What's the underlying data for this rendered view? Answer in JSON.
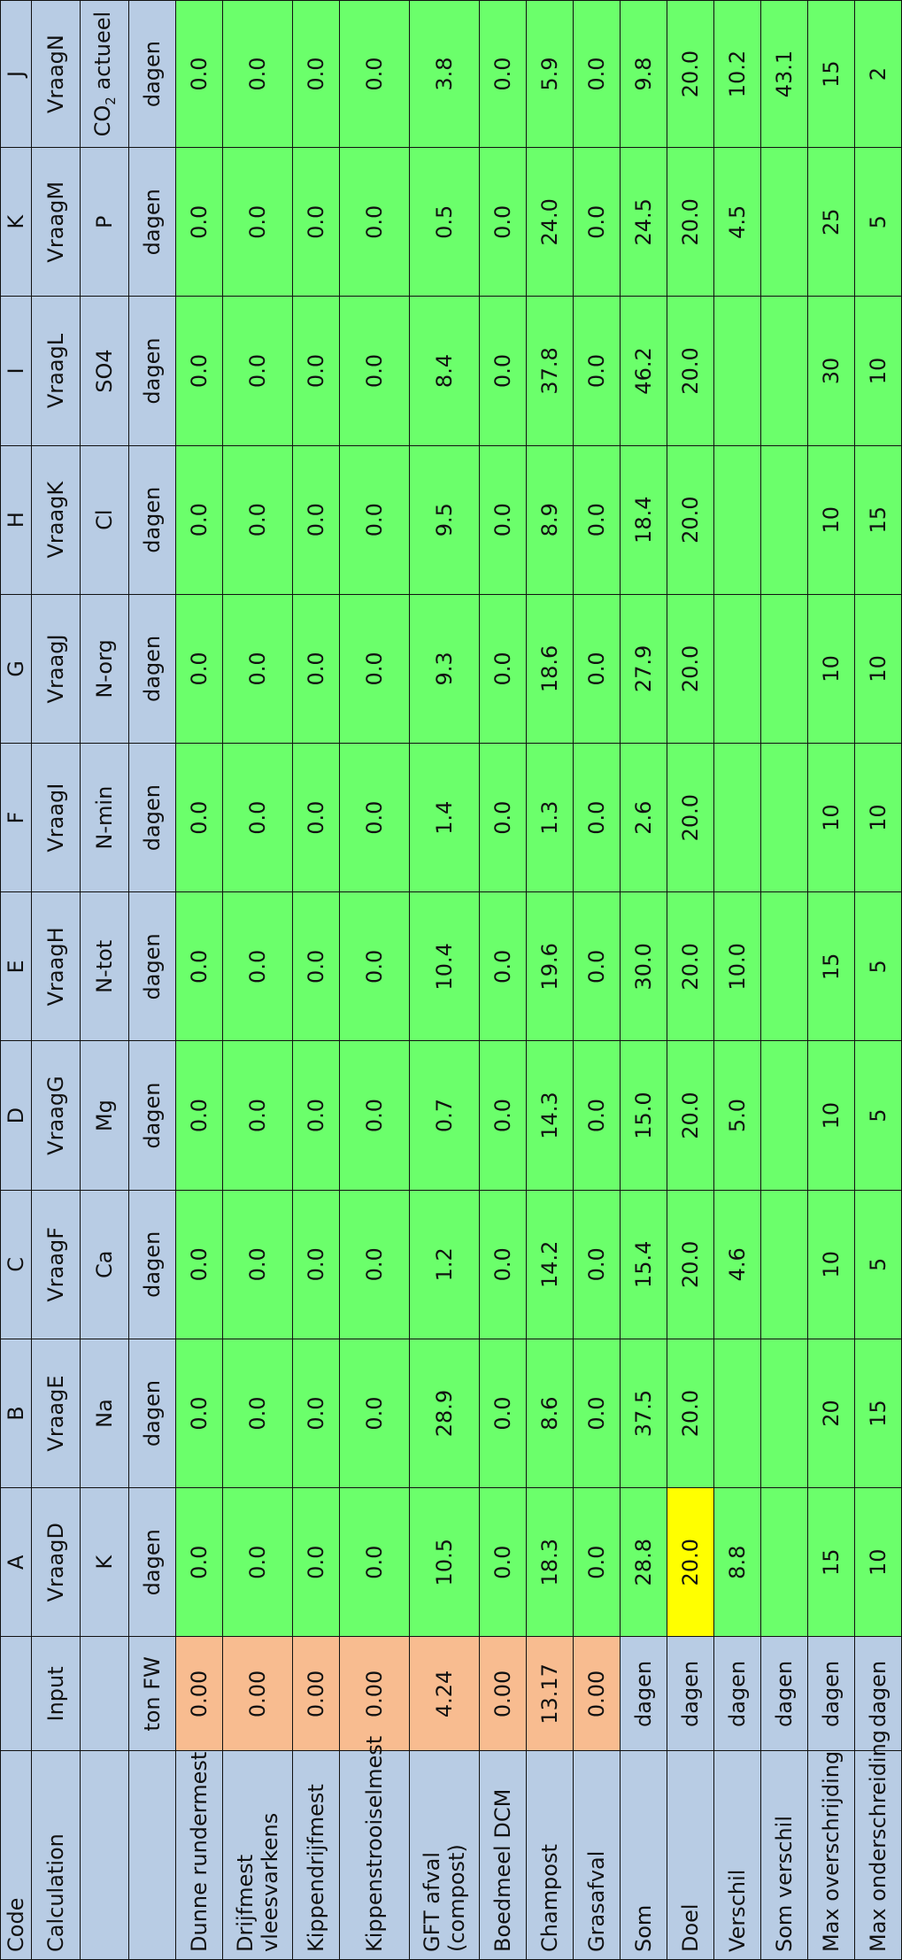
{
  "colors": {
    "header": "#b8cce4",
    "input": "#f8bc90",
    "value": "#6bff6b",
    "highlight": "#ffff00",
    "border": "#111111"
  },
  "header": {
    "code_label": "Code",
    "calc_label": "Calculation",
    "input_label": "Input",
    "input_unit": "ton FW",
    "columns": [
      {
        "code": "A",
        "vraag": "VraagD",
        "element": "K",
        "unit": "dagen"
      },
      {
        "code": "B",
        "vraag": "VraagE",
        "element": "Na",
        "unit": "dagen"
      },
      {
        "code": "C",
        "vraag": "VraagF",
        "element": "Ca",
        "unit": "dagen"
      },
      {
        "code": "D",
        "vraag": "VraagG",
        "element": "Mg",
        "unit": "dagen"
      },
      {
        "code": "E",
        "vraag": "VraagH",
        "element": "N-tot",
        "unit": "dagen"
      },
      {
        "code": "F",
        "vraag": "VraagI",
        "element": "N-min",
        "unit": "dagen"
      },
      {
        "code": "G",
        "vraag": "VraagJ",
        "element": "N-org",
        "unit": "dagen"
      },
      {
        "code": "H",
        "vraag": "VraagK",
        "element": "Cl",
        "unit": "dagen"
      },
      {
        "code": "I",
        "vraag": "VraagL",
        "element": "SO4",
        "unit": "dagen"
      },
      {
        "code": "K",
        "vraag": "VraagM",
        "element": "P",
        "unit": "dagen"
      },
      {
        "code": "J",
        "vraag": "VraagN",
        "element": "CO",
        "element_sub": "2",
        "element_suffix": " actueel",
        "unit": "dagen"
      }
    ]
  },
  "rows": [
    {
      "label": "Dunne rundermest",
      "input": "0.00",
      "values": [
        "0.0",
        "0.0",
        "0.0",
        "0.0",
        "0.0",
        "0.0",
        "0.0",
        "0.0",
        "0.0",
        "0.0",
        "0.0"
      ]
    },
    {
      "label": "Drijfmest vleesvarkens",
      "input": "0.00",
      "values": [
        "0.0",
        "0.0",
        "0.0",
        "0.0",
        "0.0",
        "0.0",
        "0.0",
        "0.0",
        "0.0",
        "0.0",
        "0.0"
      ]
    },
    {
      "label": "Kippendrijfmest",
      "input": "0.00",
      "values": [
        "0.0",
        "0.0",
        "0.0",
        "0.0",
        "0.0",
        "0.0",
        "0.0",
        "0.0",
        "0.0",
        "0.0",
        "0.0"
      ]
    },
    {
      "label": "Kippenstrooiselmest",
      "input": "0.00",
      "values": [
        "0.0",
        "0.0",
        "0.0",
        "0.0",
        "0.0",
        "0.0",
        "0.0",
        "0.0",
        "0.0",
        "0.0",
        "0.0"
      ]
    },
    {
      "label": "GFT afval (compost)",
      "input": "4.24",
      "values": [
        "10.5",
        "28.9",
        "1.2",
        "0.7",
        "10.4",
        "1.4",
        "9.3",
        "9.5",
        "8.4",
        "0.5",
        "3.8"
      ]
    },
    {
      "label": "Boedmeel DCM",
      "input": "0.00",
      "values": [
        "0.0",
        "0.0",
        "0.0",
        "0.0",
        "0.0",
        "0.0",
        "0.0",
        "0.0",
        "0.0",
        "0.0",
        "0.0"
      ]
    },
    {
      "label": "Champost",
      "input": "13.17",
      "values": [
        "18.3",
        "8.6",
        "14.2",
        "14.3",
        "19.6",
        "1.3",
        "18.6",
        "8.9",
        "37.8",
        "24.0",
        "5.9"
      ]
    },
    {
      "label": "Grasafval",
      "input": "0.00",
      "values": [
        "0.0",
        "0.0",
        "0.0",
        "0.0",
        "0.0",
        "0.0",
        "0.0",
        "0.0",
        "0.0",
        "0.0",
        "0.0"
      ]
    }
  ],
  "summary": [
    {
      "label": "Som",
      "unit": "dagen",
      "values": [
        "28.8",
        "37.5",
        "15.4",
        "15.0",
        "30.0",
        "2.6",
        "27.9",
        "18.4",
        "46.2",
        "24.5",
        "9.8"
      ]
    },
    {
      "label": "Doel",
      "unit": "dagen",
      "values": [
        "20.0",
        "20.0",
        "20.0",
        "20.0",
        "20.0",
        "20.0",
        "20.0",
        "20.0",
        "20.0",
        "20.0",
        "20.0"
      ],
      "highlight_index": 0
    },
    {
      "label": "Verschil",
      "unit": "dagen",
      "values": [
        "8.8",
        "",
        "4.6",
        "5.0",
        "10.0",
        "",
        "",
        "",
        "",
        "4.5",
        "10.2"
      ]
    },
    {
      "label": "Som verschil",
      "unit": "dagen",
      "values": [
        "",
        "",
        "",
        "",
        "",
        "",
        "",
        "",
        "",
        "",
        "43.1"
      ]
    },
    {
      "label": "Max overschrijding",
      "unit": "dagen",
      "values": [
        "15",
        "20",
        "10",
        "10",
        "15",
        "10",
        "10",
        "10",
        "30",
        "25",
        "15"
      ]
    },
    {
      "label": "Max onderschreiding",
      "unit": "dagen",
      "values": [
        "10",
        "15",
        "5",
        "5",
        "5",
        "10",
        "10",
        "15",
        "10",
        "5",
        "2"
      ]
    }
  ]
}
